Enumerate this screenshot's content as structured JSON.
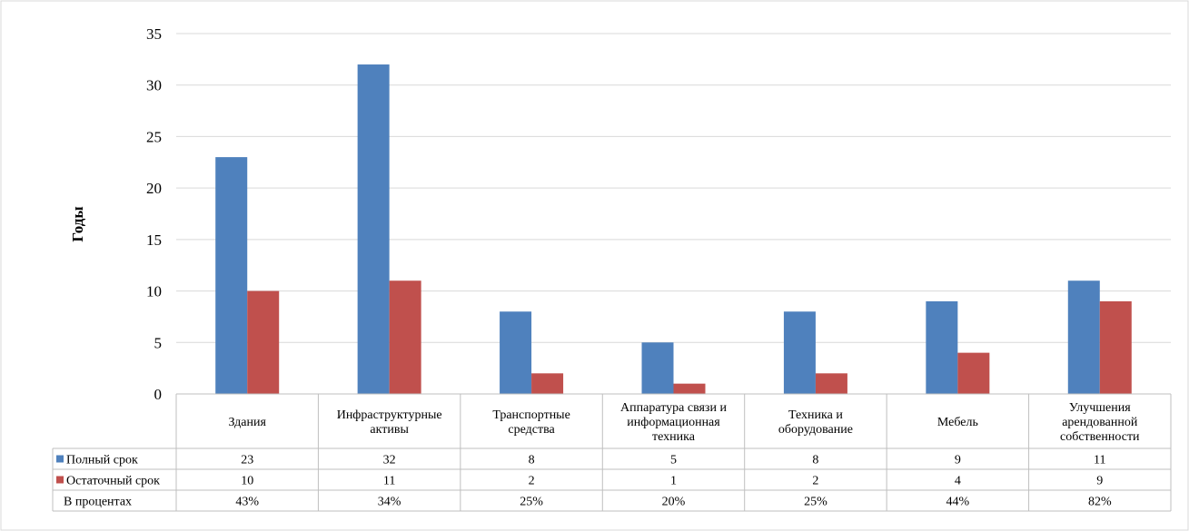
{
  "chart_data": {
    "type": "bar",
    "title": "",
    "xlabel": "",
    "ylabel": "Годы",
    "ylim": [
      0,
      35
    ],
    "yticks": [
      0,
      5,
      10,
      15,
      20,
      25,
      30,
      35
    ],
    "grid": true,
    "categories": [
      [
        "Здания"
      ],
      [
        "Инфраструктурные",
        "активы"
      ],
      [
        "Транспортные",
        "средства"
      ],
      [
        "Аппаратура связи и",
        "информационная",
        "техника"
      ],
      [
        "Техника и",
        "оборудование"
      ],
      [
        "Мебель"
      ],
      [
        "Улучшения",
        "арендованной",
        "собственности"
      ]
    ],
    "series": [
      {
        "name": "Полный срок",
        "color": "#4F81BD",
        "values": [
          23,
          32,
          8,
          5,
          8,
          9,
          11
        ]
      },
      {
        "name": "Остаточный срок",
        "color": "#C0504D",
        "values": [
          10,
          11,
          2,
          1,
          2,
          4,
          9
        ]
      }
    ],
    "table_rows": [
      {
        "label": "Полный срок",
        "legend_color": "#4F81BD",
        "cells": [
          "23",
          "32",
          "8",
          "5",
          "8",
          "9",
          "11"
        ]
      },
      {
        "label": "Остаточный срок",
        "legend_color": "#C0504D",
        "cells": [
          "10",
          "11",
          "2",
          "1",
          "2",
          "4",
          "9"
        ]
      },
      {
        "label": "В процентах",
        "legend_color": null,
        "cells": [
          "43%",
          "34%",
          "25%",
          "20%",
          "25%",
          "44%",
          "82%"
        ]
      }
    ]
  }
}
